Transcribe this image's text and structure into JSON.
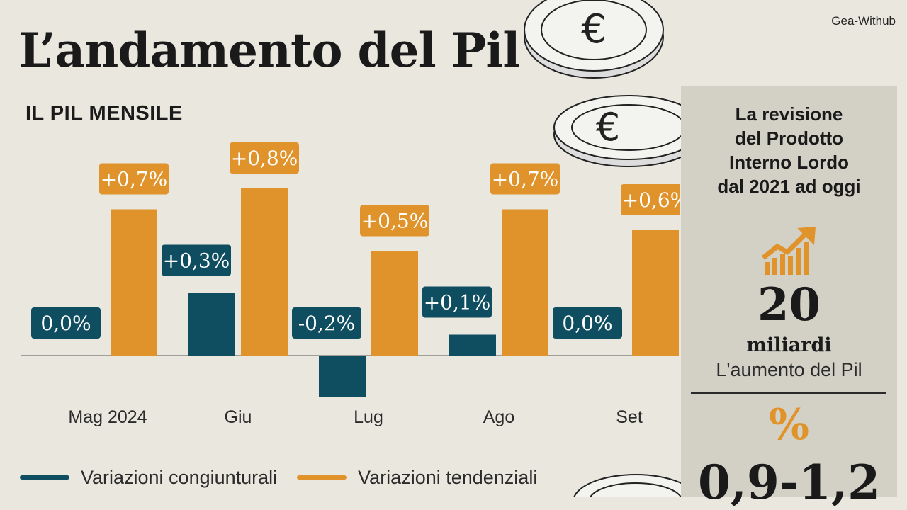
{
  "header": {
    "title": "L’andamento del Pil",
    "source": "Gea-Withub"
  },
  "chart_data": {
    "type": "bar",
    "title": "IL PIL MENSILE",
    "categories": [
      "Mag 2024",
      "Giu",
      "Lug",
      "Ago",
      "Set"
    ],
    "series": [
      {
        "name": "Variazioni congiunturali",
        "color": "#0f4e60",
        "values": [
          0.0,
          0.3,
          -0.2,
          0.1,
          0.0
        ],
        "labels": [
          "0,0%",
          "+0,3%",
          "-0,2%",
          "+0,1%",
          "0,0%"
        ]
      },
      {
        "name": "Variazioni tendenziali",
        "color": "#e0932b",
        "values": [
          0.7,
          0.8,
          0.5,
          0.7,
          0.6
        ],
        "labels": [
          "+0,7%",
          "+0,8%",
          "+0,5%",
          "+0,7%",
          "+0,6%"
        ]
      }
    ],
    "legend_position": "bottom-left",
    "grid": false
  },
  "sidebar": {
    "title_lines": [
      "La revisione",
      "del Prodotto",
      "Interno Lordo",
      "dal 2021 ad oggi"
    ],
    "icon": "growth-chart-icon",
    "big_value": "20",
    "unit": "miliardi",
    "caption": "L'aumento del Pil",
    "percent_symbol": "%",
    "range_value": "0,9-1,2"
  },
  "decor": {
    "icon": "euro-coin-icon"
  }
}
